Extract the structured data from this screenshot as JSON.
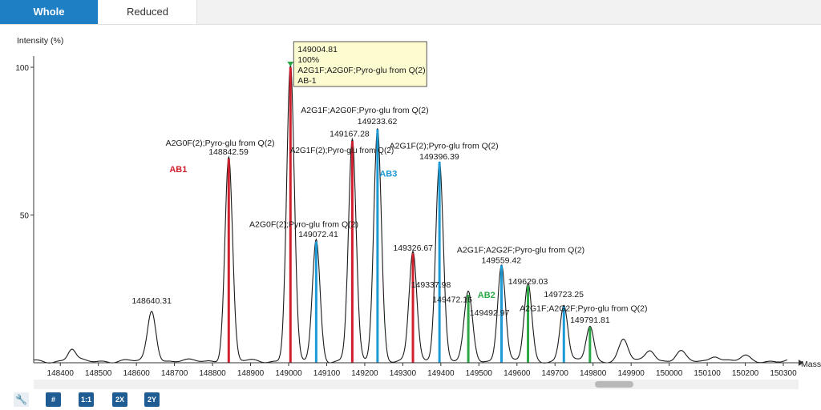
{
  "tabs": [
    {
      "label": "Whole",
      "active": true
    },
    {
      "label": "Reduced",
      "active": false
    }
  ],
  "toolbar": {
    "wrench_icon": "wrench-icon",
    "buttons": [
      "#",
      "1:1",
      "2X",
      "2Y"
    ]
  },
  "colors": {
    "accent": "#1e7fc4",
    "red": "#d21f2d",
    "blue": "#1b9ad6",
    "green": "#2aa845",
    "trace": "#1a1a1a",
    "tooltip_bg": "#fdfbd0"
  },
  "chart_data": {
    "type": "line",
    "ylabel": "Intensity (%)",
    "xlabel": "Mass",
    "xlim": [
      148330,
      150340
    ],
    "ylim": [
      0,
      100
    ],
    "xticks": [
      148400,
      148500,
      148600,
      148700,
      148800,
      148900,
      149000,
      149100,
      149200,
      149300,
      149400,
      149500,
      149600,
      149700,
      149800,
      149900,
      150000,
      150100,
      150200,
      150300
    ],
    "yticks": [
      50,
      100
    ],
    "peaks": [
      {
        "mass": 148430,
        "intensity": 4,
        "width": 10,
        "mark": null
      },
      {
        "mass": 148640.31,
        "intensity": 17,
        "width": 11,
        "mark": null
      },
      {
        "mass": 148842.59,
        "intensity": 69,
        "width": 10,
        "mark": "red"
      },
      {
        "mass": 149004.81,
        "intensity": 100,
        "width": 10,
        "mark": "red"
      },
      {
        "mass": 149072.41,
        "intensity": 41,
        "width": 10,
        "mark": "blue"
      },
      {
        "mass": 149167.28,
        "intensity": 75,
        "width": 10,
        "mark": "red"
      },
      {
        "mass": 149233.62,
        "intensity": 79,
        "width": 10,
        "mark": "blue"
      },
      {
        "mass": 149326.67,
        "intensity": 37,
        "width": 10,
        "mark": "red"
      },
      {
        "mass": 149396.39,
        "intensity": 68,
        "width": 10,
        "mark": "blue"
      },
      {
        "mass": 149472.16,
        "intensity": 23,
        "width": 11,
        "mark": "green"
      },
      {
        "mass": 149559.42,
        "intensity": 33,
        "width": 10,
        "mark": "blue"
      },
      {
        "mass": 149629.03,
        "intensity": 26,
        "width": 10,
        "mark": "green"
      },
      {
        "mass": 149723.25,
        "intensity": 19,
        "width": 10,
        "mark": "blue"
      },
      {
        "mass": 149791.81,
        "intensity": 12,
        "width": 10,
        "mark": "green"
      },
      {
        "mass": 149880,
        "intensity": 7,
        "width": 12,
        "mark": null
      },
      {
        "mass": 149950,
        "intensity": 4,
        "width": 12,
        "mark": null
      },
      {
        "mass": 150030,
        "intensity": 3,
        "width": 12,
        "mark": null
      },
      {
        "mass": 150120,
        "intensity": 2,
        "width": 12,
        "mark": null
      },
      {
        "mass": 150200,
        "intensity": 1.5,
        "width": 12,
        "mark": null
      }
    ],
    "annotations": [
      {
        "text": "148640.31",
        "mass": 148640,
        "intensity": 20,
        "color": "#1a1a1a",
        "bold": false,
        "size": 10.5
      },
      {
        "text": "A2G0F(2);Pyro-glu from Q(2)",
        "mass": 148820,
        "intensity": 73.5,
        "color": "#1a1a1a",
        "bold": false,
        "size": 10.5
      },
      {
        "text": "148842.59",
        "mass": 148842,
        "intensity": 70.5,
        "color": "#1a1a1a",
        "bold": false,
        "size": 10.5
      },
      {
        "text": "AB1",
        "mass": 148710,
        "intensity": 64.5,
        "color": "#d21f2d",
        "bold": true,
        "size": 11
      },
      {
        "text": "A2G0F(2);Pyro-glu from Q(2)",
        "mass": 149040,
        "intensity": 46,
        "color": "#1a1a1a",
        "bold": false,
        "size": 10.5
      },
      {
        "text": "149072.41",
        "mass": 149078,
        "intensity": 42.5,
        "color": "#1a1a1a",
        "bold": false,
        "size": 10.5
      },
      {
        "text": "149167.28",
        "mass": 149160,
        "intensity": 76.5,
        "color": "#1a1a1a",
        "bold": false,
        "size": 10.5
      },
      {
        "text": "A2G1F(2);Pyro-glu from Q(2)",
        "mass": 149140,
        "intensity": 71,
        "color": "#1a1a1a",
        "bold": false,
        "size": 10
      },
      {
        "text": "A2G1F;A2G0F;Pyro-glu from Q(2)",
        "mass": 149200,
        "intensity": 84.5,
        "color": "#1a1a1a",
        "bold": false,
        "size": 10.5
      },
      {
        "text": "149233.62",
        "mass": 149233,
        "intensity": 80.8,
        "color": "#1a1a1a",
        "bold": false,
        "size": 10.5
      },
      {
        "text": "AB3",
        "mass": 149262,
        "intensity": 63,
        "color": "#1b9ad6",
        "bold": true,
        "size": 11
      },
      {
        "text": "A2G1F(2);Pyro-glu from Q(2)",
        "mass": 149408,
        "intensity": 72.5,
        "color": "#1a1a1a",
        "bold": false,
        "size": 10.5
      },
      {
        "text": "149396.39",
        "mass": 149396,
        "intensity": 68.8,
        "color": "#1a1a1a",
        "bold": false,
        "size": 10.5
      },
      {
        "text": "149326.67",
        "mass": 149327,
        "intensity": 38,
        "color": "#1a1a1a",
        "bold": false,
        "size": 10.5
      },
      {
        "text": "149337.98",
        "mass": 149374,
        "intensity": 25.5,
        "color": "#1a1a1a",
        "bold": false,
        "size": 10.5
      },
      {
        "text": "149472.16",
        "mass": 149430,
        "intensity": 20.5,
        "color": "#1a1a1a",
        "bold": false,
        "size": 10.5
      },
      {
        "text": "AB2",
        "mass": 149520,
        "intensity": 22,
        "color": "#2aa845",
        "bold": true,
        "size": 11
      },
      {
        "text": "149492.97",
        "mass": 149528,
        "intensity": 16,
        "color": "#1a1a1a",
        "bold": false,
        "size": 10.5
      },
      {
        "text": "A2G1F;A2G2F;Pyro-glu from Q(2)",
        "mass": 149610,
        "intensity": 37.3,
        "color": "#1a1a1a",
        "bold": false,
        "size": 10.5
      },
      {
        "text": "149559.42",
        "mass": 149559,
        "intensity": 33.8,
        "color": "#1a1a1a",
        "bold": false,
        "size": 10.5
      },
      {
        "text": "149629.03",
        "mass": 149629,
        "intensity": 26.5,
        "color": "#1a1a1a",
        "bold": false,
        "size": 10.5
      },
      {
        "text": "149723.25",
        "mass": 149723,
        "intensity": 22.2,
        "color": "#1a1a1a",
        "bold": false,
        "size": 10.5
      },
      {
        "text": "A2G1F;A2G2F;Pyro-glu from Q(2)",
        "mass": 149775,
        "intensity": 17.5,
        "color": "#1a1a1a",
        "bold": false,
        "size": 10.5
      },
      {
        "text": "149791.81",
        "mass": 149792,
        "intensity": 13.5,
        "color": "#1a1a1a",
        "bold": false,
        "size": 10.5
      }
    ],
    "tooltip": {
      "mass": 149004.81,
      "lines": [
        "149004.81",
        "100%",
        "A2G1F;A2G0F;Pyro-glu from Q(2)",
        "AB-1"
      ]
    }
  }
}
